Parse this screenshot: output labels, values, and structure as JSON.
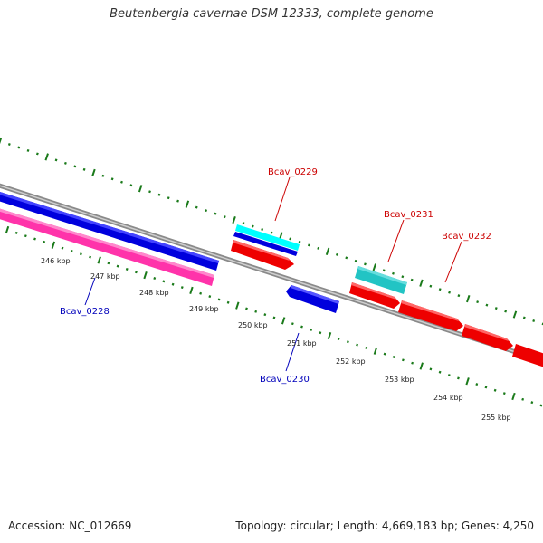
{
  "header": {
    "title": "Beutenbergia cavernae DSM 12333, complete genome"
  },
  "footer": {
    "accession": "Accession: NC_012669",
    "topology": "Topology: circular; Length: 4,669,183 bp; Genes: 4,250"
  },
  "colors": {
    "backbone": "#8a8a8a",
    "tick": "#1a7a1a",
    "forward_gene": "#ff0000",
    "reverse_gene": "#0000dd",
    "forward_label": "#cc0000",
    "reverse_label": "#0000bb",
    "rrna_forward": "#00ffff",
    "rrna_forward_dark": "#22c4c4",
    "pink_feature": "#ff33aa"
  },
  "ticks": [
    "246 kbp",
    "247 kbp",
    "248 kbp",
    "249 kbp",
    "250 kbp",
    "251 kbp",
    "252 kbp",
    "253 kbp",
    "254 kbp",
    "255 kbp"
  ],
  "genes": [
    {
      "label": "Bcav_0228",
      "strand": "reverse"
    },
    {
      "label": "Bcav_0229",
      "strand": "forward"
    },
    {
      "label": "Bcav_0230",
      "strand": "reverse"
    },
    {
      "label": "Bcav_0231",
      "strand": "forward"
    },
    {
      "label": "Bcav_0232",
      "strand": "forward"
    }
  ]
}
